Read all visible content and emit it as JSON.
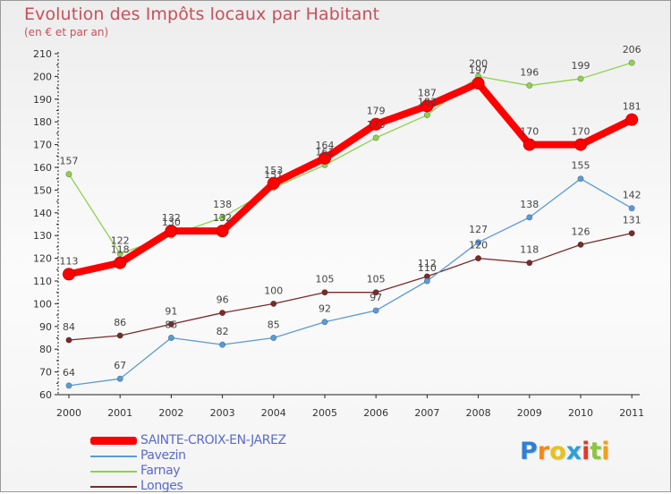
{
  "chart_data": {
    "type": "line",
    "title": "Evolution des Impôts locaux par Habitant",
    "subtitle": "(en € et par an)",
    "xlabel": "",
    "ylabel": "",
    "ylim": [
      60,
      210
    ],
    "yticks": [
      60,
      70,
      80,
      90,
      100,
      110,
      120,
      130,
      140,
      150,
      160,
      170,
      180,
      190,
      200,
      210
    ],
    "categories": [
      "2000",
      "2001",
      "2002",
      "2003",
      "2004",
      "2005",
      "2006",
      "2007",
      "2008",
      "2009",
      "2010",
      "2011"
    ],
    "grid": false,
    "legend_position": "bottom-left",
    "series": [
      {
        "name": "SAINTE-CROIX-EN-JAREZ",
        "color": "#ff0000",
        "values": [
          113,
          118,
          132,
          132,
          153,
          164,
          179,
          187,
          197,
          170,
          170,
          181
        ]
      },
      {
        "name": "Pavezin",
        "color": "#5a9bd5",
        "values": [
          64,
          67,
          85,
          82,
          85,
          92,
          97,
          110,
          127,
          138,
          155,
          142
        ]
      },
      {
        "name": "Farnay",
        "color": "#8fd14f",
        "values": [
          157,
          122,
          130,
          138,
          151,
          161,
          173,
          183,
          200,
          196,
          199,
          206
        ]
      },
      {
        "name": "Longes",
        "color": "#7a2a2a",
        "values": [
          84,
          86,
          91,
          96,
          100,
          105,
          105,
          112,
          120,
          118,
          126,
          131
        ]
      }
    ]
  },
  "legend": {
    "items": [
      {
        "label": "SAINTE-CROIX-EN-JAREZ"
      },
      {
        "label": "Pavezin"
      },
      {
        "label": "Farnay"
      },
      {
        "label": "Longes"
      }
    ]
  },
  "logo": {
    "letters": [
      "P",
      "r",
      "o",
      "x",
      "i",
      "t",
      "i"
    ],
    "colors": [
      "#2f7fd6",
      "#f08a1c",
      "#e8c21c",
      "#2f9fd6",
      "#e23a2a",
      "#8cc63f",
      "#f0a01c"
    ]
  }
}
